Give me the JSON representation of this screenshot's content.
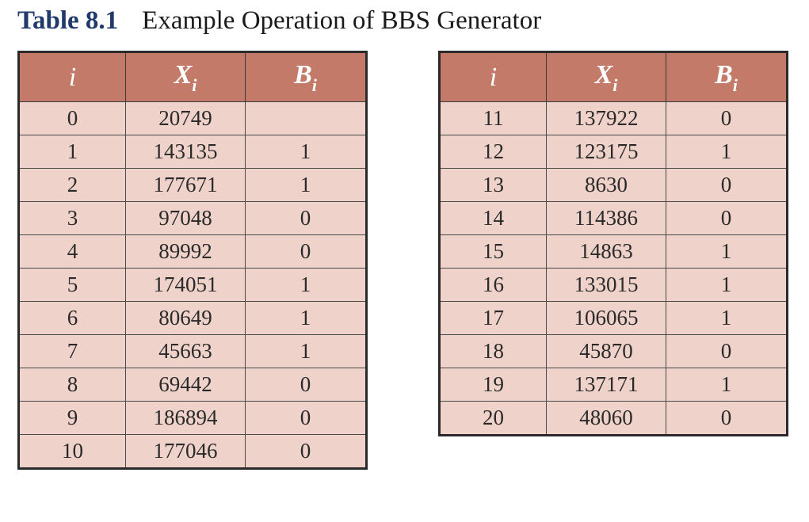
{
  "caption": {
    "number": "Table 8.1",
    "text": "Example Operation of BBS Generator"
  },
  "columns": {
    "i": "i",
    "x_base": "X",
    "x_sub": "i",
    "b_base": "B",
    "b_sub": "i"
  },
  "left_table": {
    "rows": [
      {
        "i": "0",
        "x": "20749",
        "b": ""
      },
      {
        "i": "1",
        "x": "143135",
        "b": "1"
      },
      {
        "i": "2",
        "x": "177671",
        "b": "1"
      },
      {
        "i": "3",
        "x": "97048",
        "b": "0"
      },
      {
        "i": "4",
        "x": "89992",
        "b": "0"
      },
      {
        "i": "5",
        "x": "174051",
        "b": "1"
      },
      {
        "i": "6",
        "x": "80649",
        "b": "1"
      },
      {
        "i": "7",
        "x": "45663",
        "b": "1"
      },
      {
        "i": "8",
        "x": "69442",
        "b": "0"
      },
      {
        "i": "9",
        "x": "186894",
        "b": "0"
      },
      {
        "i": "10",
        "x": "177046",
        "b": "0"
      }
    ]
  },
  "right_table": {
    "rows": [
      {
        "i": "11",
        "x": "137922",
        "b": "0"
      },
      {
        "i": "12",
        "x": "123175",
        "b": "1"
      },
      {
        "i": "13",
        "x": "8630",
        "b": "0"
      },
      {
        "i": "14",
        "x": "114386",
        "b": "0"
      },
      {
        "i": "15",
        "x": "14863",
        "b": "1"
      },
      {
        "i": "16",
        "x": "133015",
        "b": "1"
      },
      {
        "i": "17",
        "x": "106065",
        "b": "1"
      },
      {
        "i": "18",
        "x": "45870",
        "b": "0"
      },
      {
        "i": "19",
        "x": "137171",
        "b": "1"
      },
      {
        "i": "20",
        "x": "48060",
        "b": "0"
      }
    ]
  },
  "colors": {
    "header_bg": "#c47a68",
    "cell_bg": "#efd2c9",
    "caption_number": "#1f3a6b"
  }
}
